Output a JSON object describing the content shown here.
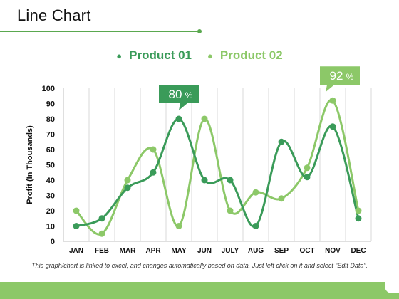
{
  "page": {
    "title": "Line Chart",
    "footnote": "This graph/chart is linked to excel, and changes automatically based on data. Just left click on it and select “Edit Data”."
  },
  "colors": {
    "product1": "#3a9b59",
    "product2": "#8cc868",
    "accent": "#5aa84f",
    "grid": "#d9d9d9",
    "footer": "#8cc868"
  },
  "chart_data": {
    "type": "line",
    "title": "",
    "xlabel": "",
    "ylabel": "Profit (In Thousands)",
    "ylim": [
      0,
      100
    ],
    "yticks": [
      0,
      10,
      20,
      30,
      40,
      50,
      60,
      70,
      80,
      90,
      100
    ],
    "categories": [
      "JAN",
      "FEB",
      "MAR",
      "APR",
      "MAY",
      "JUN",
      "JULY",
      "AUG",
      "SEP",
      "OCT",
      "NOV",
      "DEC"
    ],
    "grid": {
      "vertical": true,
      "horizontal": false
    },
    "legend_position": "top-center",
    "smooth": true,
    "series": [
      {
        "name": "Product 01",
        "values": [
          10,
          15,
          35,
          45,
          80,
          40,
          40,
          10,
          65,
          42,
          75,
          15
        ]
      },
      {
        "name": "Product 02",
        "values": [
          20,
          5,
          40,
          60,
          10,
          80,
          20,
          32,
          28,
          48,
          92,
          20
        ]
      }
    ],
    "annotations": [
      {
        "category": "MAY",
        "series": 0,
        "value": "80",
        "suffix": "%"
      },
      {
        "category": "NOV",
        "series": 1,
        "value": "92",
        "suffix": "%"
      }
    ]
  }
}
